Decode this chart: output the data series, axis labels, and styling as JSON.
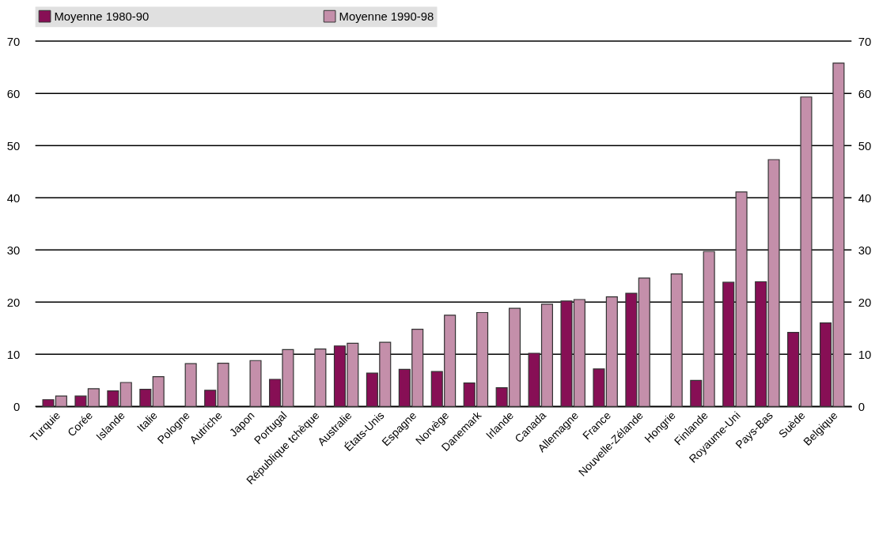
{
  "chart_data": {
    "type": "bar",
    "categories": [
      "Turquie",
      "Corée",
      "Islande",
      "Italie",
      "Pologne",
      "Autriche",
      "Japon",
      "Portugal",
      "République tchèque",
      "Australie",
      "États-Unis",
      "Espagne",
      "Norvège",
      "Danemark",
      "Irlande",
      "Canada",
      "Allemagne",
      "France",
      "Nouvelle-Zélande",
      "Hongrie",
      "Finlande",
      "Royaume-Uni",
      "Pays-Bas",
      "Suède",
      "Belgique"
    ],
    "series": [
      {
        "name": "Moyenne 1980-90",
        "color": "#870f55",
        "values": [
          1.3,
          2.0,
          3.0,
          3.3,
          null,
          3.1,
          null,
          5.2,
          null,
          11.6,
          6.4,
          7.1,
          6.7,
          4.5,
          3.6,
          10.2,
          20.2,
          7.2,
          21.7,
          null,
          5.0,
          23.8,
          23.9,
          14.2,
          16.0
        ]
      },
      {
        "name": "Moyenne 1990-98",
        "color": "#c48faa",
        "values": [
          2.0,
          3.4,
          4.6,
          5.7,
          8.2,
          8.3,
          8.8,
          10.9,
          11.0,
          12.1,
          12.3,
          14.8,
          17.5,
          18.0,
          18.8,
          19.6,
          20.5,
          21.0,
          24.6,
          25.4,
          29.7,
          41.1,
          47.3,
          59.3,
          65.8
        ]
      }
    ],
    "ylim": [
      0,
      70
    ],
    "yticks": [
      0,
      10,
      20,
      30,
      40,
      50,
      60,
      70
    ],
    "y2lim": [
      0,
      70
    ],
    "y2ticks": [
      0,
      10,
      20,
      30,
      40,
      50,
      60,
      70
    ],
    "grid": "y",
    "legend": "top"
  }
}
